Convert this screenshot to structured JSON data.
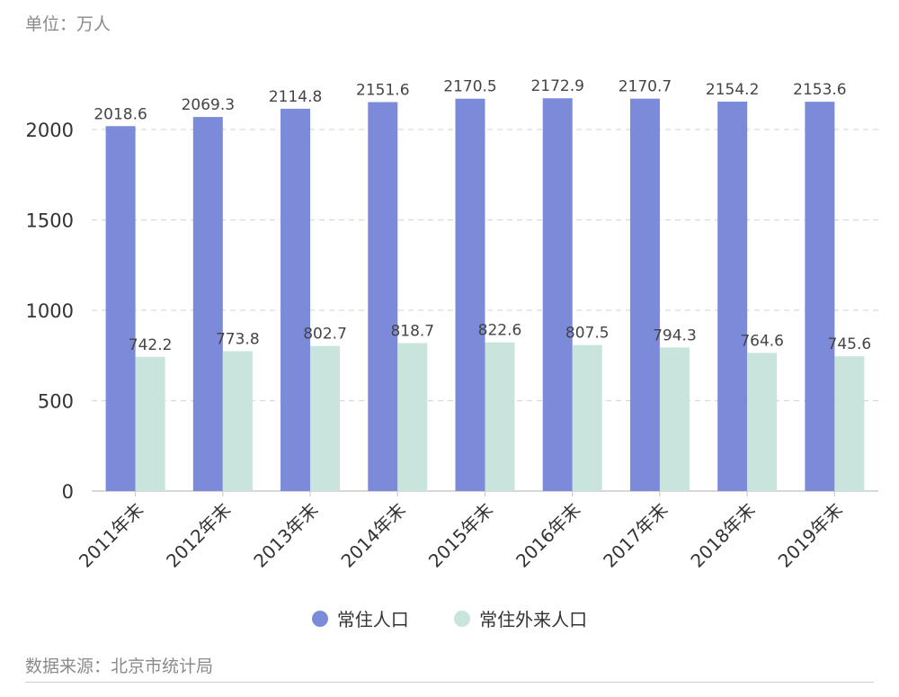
{
  "unit_label": "单位：万人",
  "source": "数据来源：北京市统计局",
  "colors": {
    "series0": "#7b8bd9",
    "series1": "#c8e4dd",
    "grid": "#d9d9d9",
    "axis": "#cccccc"
  },
  "chart_data": {
    "type": "bar",
    "categories": [
      "2011年末",
      "2012年末",
      "2013年末",
      "2014年末",
      "2015年末",
      "2016年末",
      "2017年末",
      "2018年末",
      "2019年末"
    ],
    "series": [
      {
        "name": "常住人口",
        "values": [
          2018.6,
          2069.3,
          2114.8,
          2151.6,
          2170.5,
          2172.9,
          2170.7,
          2154.2,
          2153.6
        ]
      },
      {
        "name": "常住外来人口",
        "values": [
          742.2,
          773.8,
          802.7,
          818.7,
          822.6,
          807.5,
          794.3,
          764.6,
          745.6
        ]
      }
    ],
    "yticks": [
      0,
      500,
      1000,
      1500,
      2000
    ],
    "ylim": [
      0,
      2000
    ],
    "grid": true,
    "legend_position": "bottom"
  }
}
